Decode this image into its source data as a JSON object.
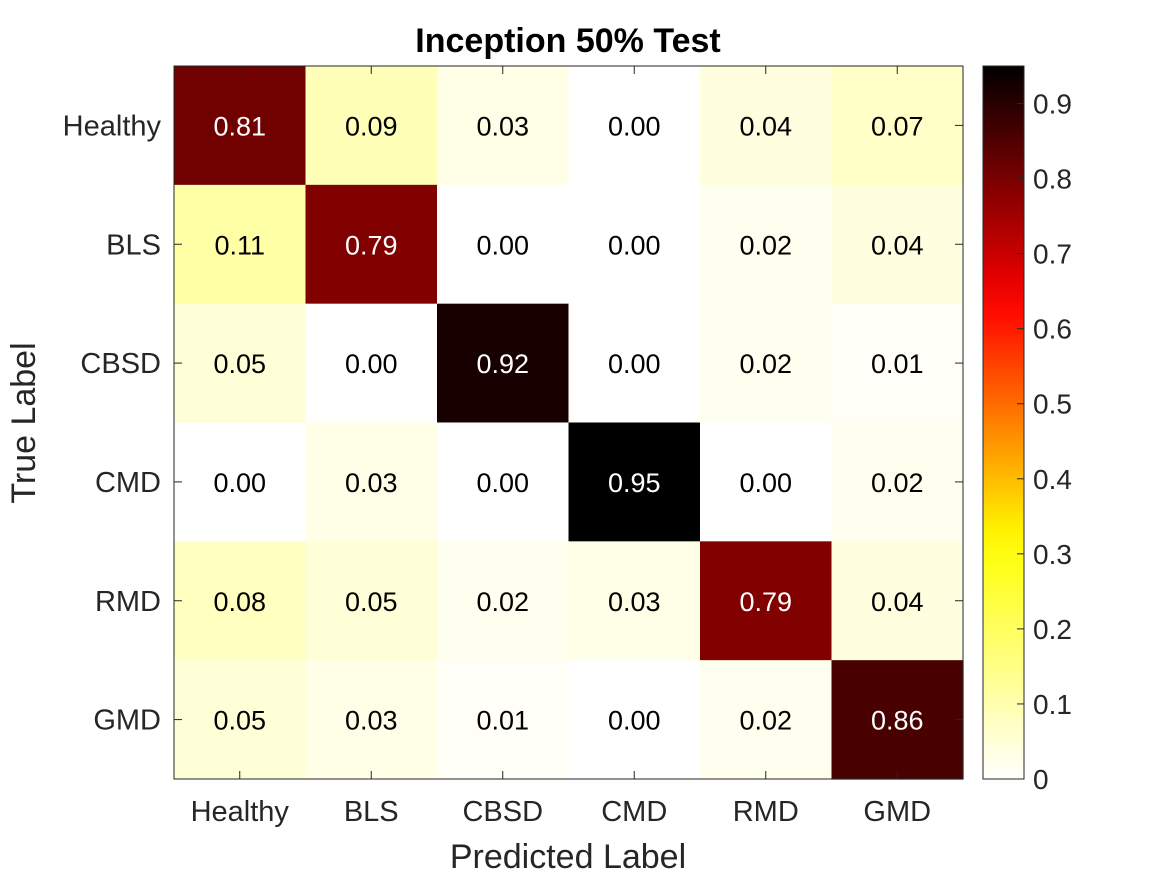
{
  "chart_data": {
    "type": "heatmap",
    "title": "Inception 50% Test",
    "xlabel": "Predicted Label",
    "ylabel": "True Label",
    "x_categories": [
      "Healthy",
      "BLS",
      "CBSD",
      "CMD",
      "RMD",
      "GMD"
    ],
    "y_categories": [
      "Healthy",
      "BLS",
      "CBSD",
      "CMD",
      "RMD",
      "GMD"
    ],
    "values": [
      [
        0.81,
        0.09,
        0.03,
        0.0,
        0.04,
        0.07
      ],
      [
        0.11,
        0.79,
        0.0,
        0.0,
        0.02,
        0.04
      ],
      [
        0.05,
        0.0,
        0.92,
        0.0,
        0.02,
        0.01
      ],
      [
        0.0,
        0.03,
        0.0,
        0.95,
        0.0,
        0.02
      ],
      [
        0.08,
        0.05,
        0.02,
        0.03,
        0.79,
        0.04
      ],
      [
        0.05,
        0.03,
        0.01,
        0.0,
        0.02,
        0.86
      ]
    ],
    "cell_labels": [
      [
        "0.81",
        "0.09",
        "0.03",
        "0.00",
        "0.04",
        "0.07"
      ],
      [
        "0.11",
        "0.79",
        "0.00",
        "0.00",
        "0.02",
        "0.04"
      ],
      [
        "0.05",
        "0.00",
        "0.92",
        "0.00",
        "0.02",
        "0.01"
      ],
      [
        "0.00",
        "0.03",
        "0.00",
        "0.95",
        "0.00",
        "0.02"
      ],
      [
        "0.08",
        "0.05",
        "0.02",
        "0.03",
        "0.79",
        "0.04"
      ],
      [
        "0.05",
        "0.03",
        "0.01",
        "0.00",
        "0.02",
        "0.86"
      ]
    ],
    "colormap": "hot (reversed)",
    "colorbar": {
      "range": [
        0,
        0.95
      ],
      "tick_values": [
        0,
        0.1,
        0.2,
        0.3,
        0.4,
        0.5,
        0.6,
        0.7,
        0.8,
        0.9
      ],
      "tick_labels": [
        "0",
        "0.1",
        "0.2",
        "0.3",
        "0.4",
        "0.5",
        "0.6",
        "0.7",
        "0.8",
        "0.9"
      ]
    }
  }
}
